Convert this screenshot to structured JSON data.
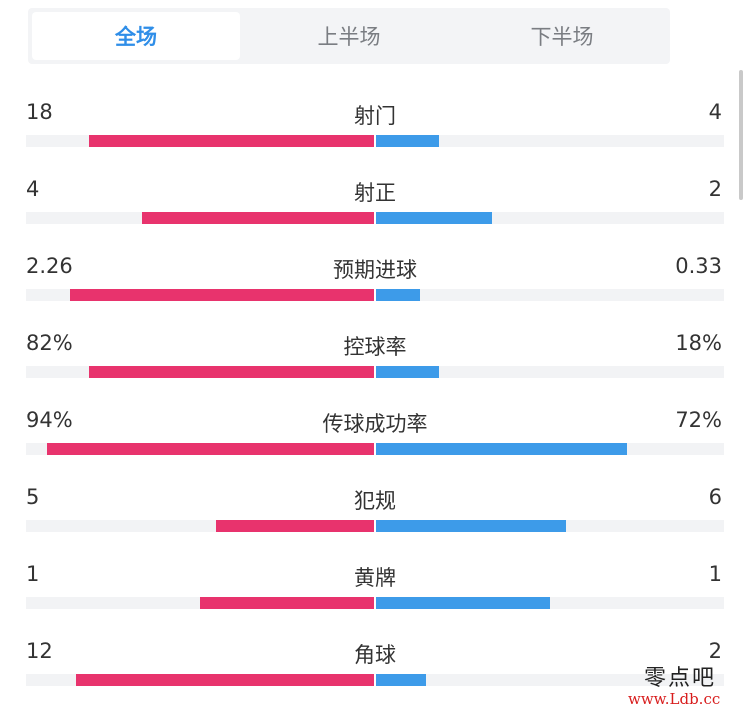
{
  "tabs": [
    {
      "label": "全场",
      "active": true
    },
    {
      "label": "上半场",
      "active": false
    },
    {
      "label": "下半场",
      "active": false
    }
  ],
  "stats": [
    {
      "label": "射门",
      "home": "18",
      "away": "4",
      "home_share": 0.818,
      "away_share": 0.182
    },
    {
      "label": "射正",
      "home": "4",
      "away": "2",
      "home_share": 0.667,
      "away_share": 0.333
    },
    {
      "label": "预期进球",
      "home": "2.26",
      "away": "0.33",
      "home_share": 0.873,
      "away_share": 0.127
    },
    {
      "label": "控球率",
      "home": "82%",
      "away": "18%",
      "home_share": 0.82,
      "away_share": 0.18
    },
    {
      "label": "传球成功率",
      "home": "94%",
      "away": "72%",
      "home_share": 0.94,
      "away_share": 0.72
    },
    {
      "label": "犯规",
      "home": "5",
      "away": "6",
      "home_share": 0.455,
      "away_share": 0.545
    },
    {
      "label": "黄牌",
      "home": "1",
      "away": "1",
      "home_share": 0.5,
      "away_share": 0.5
    },
    {
      "label": "角球",
      "home": "12",
      "away": "2",
      "home_share": 0.857,
      "away_share": 0.143
    }
  ],
  "colors": {
    "home_bar": "#e8336d",
    "away_bar": "#3d9be9",
    "active_tab": "#2f8ee8"
  },
  "watermark": {
    "name": "零点吧",
    "url": "www.Ldb.cc"
  }
}
